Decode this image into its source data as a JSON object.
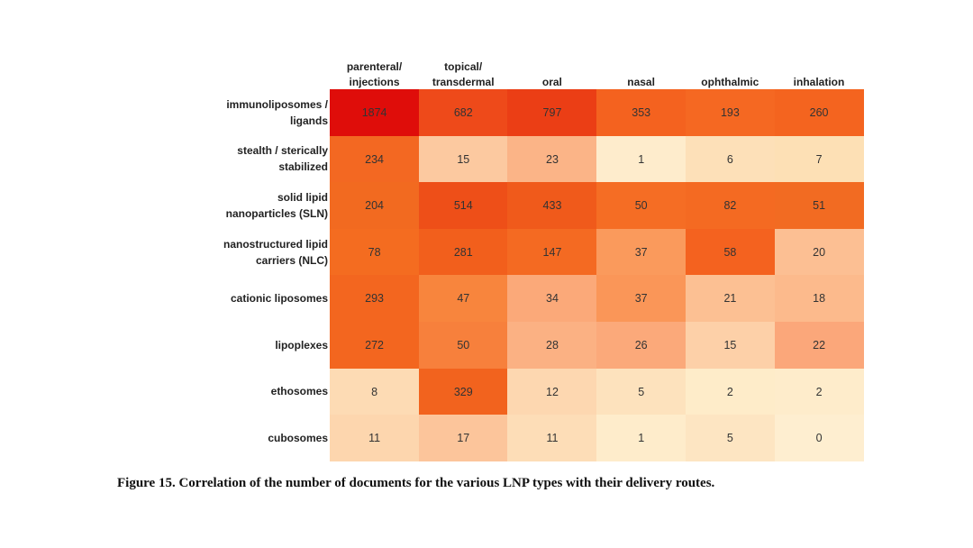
{
  "chart_data": {
    "type": "heatmap",
    "title": "",
    "columns": [
      "parenteral/\ninjections",
      "topical/\ntransdermal",
      "oral",
      "nasal",
      "ophthalmic",
      "inhalation"
    ],
    "rows": [
      "immunoliposomes /\nligands",
      "stealth / sterically\nstabilized",
      "solid lipid\nnanoparticles (SLN)",
      "nanostructured lipid\ncarriers (NLC)",
      "cationic liposomes",
      "lipoplexes",
      "ethosomes",
      "cubosomes"
    ],
    "values": [
      [
        1874,
        682,
        797,
        353,
        193,
        260
      ],
      [
        234,
        15,
        23,
        1,
        6,
        7
      ],
      [
        204,
        514,
        433,
        50,
        82,
        51
      ],
      [
        78,
        281,
        147,
        37,
        58,
        20
      ],
      [
        293,
        47,
        34,
        37,
        21,
        18
      ],
      [
        272,
        50,
        28,
        26,
        15,
        22
      ],
      [
        8,
        329,
        12,
        5,
        2,
        2
      ],
      [
        11,
        17,
        11,
        1,
        5,
        0
      ]
    ],
    "colors": [
      [
        "#df0d0a",
        "#ee4a1a",
        "#eb3e15",
        "#f4621f",
        "#f56822",
        "#f4641f"
      ],
      [
        "#f36822",
        "#fcc9a0",
        "#fbb487",
        "#feeccc",
        "#fde0b8",
        "#fde0b5"
      ],
      [
        "#f26a20",
        "#ee4f18",
        "#f05a1b",
        "#f56d24",
        "#f46a22",
        "#f26b22"
      ],
      [
        "#f46c20",
        "#f25f1c",
        "#f46a22",
        "#fa9a5c",
        "#f4621f",
        "#fcbf93"
      ],
      [
        "#f3661f",
        "#f8853d",
        "#fba979",
        "#fa9658",
        "#fcc093",
        "#fcba8c"
      ],
      [
        "#f3661f",
        "#f7803c",
        "#fbb183",
        "#fba97a",
        "#fdd0a8",
        "#fba77a"
      ],
      [
        "#fddbb4",
        "#f2631e",
        "#fdd7b0",
        "#fde2bd",
        "#feecc9",
        "#feeccb"
      ],
      [
        "#fdd6ae",
        "#fcc59b",
        "#fdddb7",
        "#feeccb",
        "#fde5c2",
        "#feeed0"
      ]
    ]
  },
  "caption": "Figure 15. Correlation of the number of documents for the various LNP types with their delivery routes."
}
